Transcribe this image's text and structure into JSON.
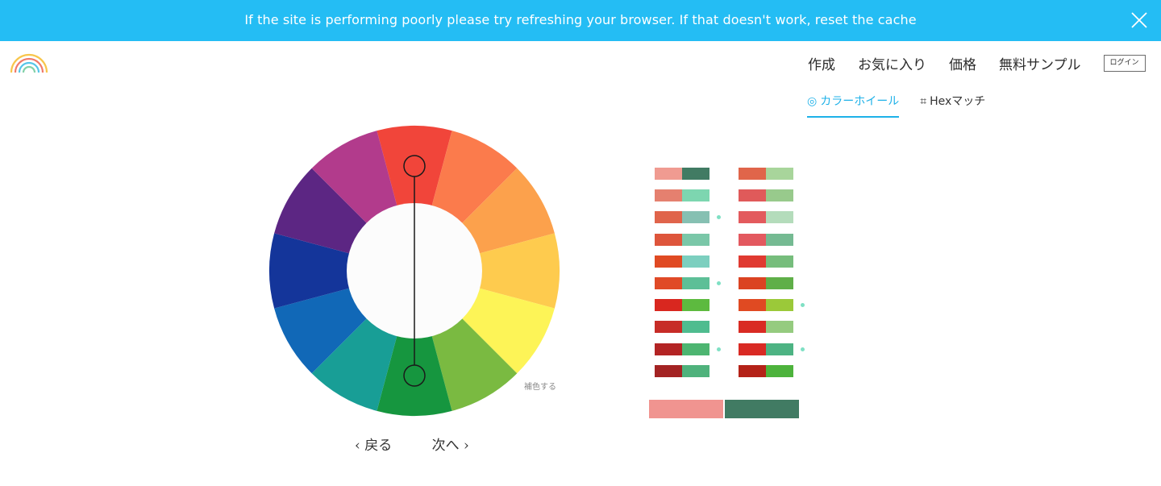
{
  "banner": {
    "message": "If the site is performing poorly please try refreshing your browser. If that doesn't work, reset the cache",
    "close_icon": "close-icon",
    "background": "#24bdf4"
  },
  "header": {
    "logo_icon": "rainbow-logo-icon",
    "nav": [
      "作成",
      "お気に入り",
      "価格",
      "無料サンプル"
    ],
    "login_label": "ログイン"
  },
  "tabs": [
    {
      "icon": "◎",
      "label": "カラーホイール",
      "active": true
    },
    {
      "icon": "⌗",
      "label": "Hexマッチ",
      "active": false
    }
  ],
  "wheel": {
    "segments": [
      "#f1453a",
      "#fb7b4c",
      "#fca14c",
      "#fecb4e",
      "#fdf457",
      "#7aba41",
      "#16963f",
      "#189e96",
      "#1168b7",
      "#14359a",
      "#5c2683",
      "#b23b8c"
    ],
    "center_color": "#fcfcfc",
    "handle_top_segment": 0,
    "handle_bottom_segment": 6,
    "mode_label": "補色する"
  },
  "pager": {
    "prev": "‹ 戻る",
    "next": "次へ ›"
  },
  "palette": {
    "left_column": [
      {
        "a": "#f09b91",
        "b": "#417b63",
        "marked": false
      },
      {
        "a": "#e5806f",
        "b": "#7dd6b0",
        "marked": false
      },
      {
        "a": "#e0644b",
        "b": "#86c0b2",
        "marked": true
      },
      {
        "a": "#de553b",
        "b": "#7ac7a8",
        "marked": false
      },
      {
        "a": "#e04a23",
        "b": "#7ccfbf",
        "marked": false
      },
      {
        "a": "#e04a27",
        "b": "#5dbf97",
        "marked": true
      },
      {
        "a": "#d9271f",
        "b": "#5dba3f",
        "marked": false
      },
      {
        "a": "#c72c27",
        "b": "#4fbc8f",
        "marked": false
      },
      {
        "a": "#b32424",
        "b": "#4db571",
        "marked": true
      },
      {
        "a": "#a32323",
        "b": "#4fb27c",
        "marked": false
      }
    ],
    "right_column": [
      {
        "a": "#e0654a",
        "b": "#a8d59b",
        "marked": false
      },
      {
        "a": "#e05a5a",
        "b": "#98ca8c",
        "marked": false
      },
      {
        "a": "#e35a5d",
        "b": "#b4dcbb",
        "marked": false
      },
      {
        "a": "#e3595f",
        "b": "#75ba92",
        "marked": false
      },
      {
        "a": "#e03a31",
        "b": "#76bd7c",
        "marked": false
      },
      {
        "a": "#db4322",
        "b": "#5faf48",
        "marked": false
      },
      {
        "a": "#e04a22",
        "b": "#9bc939",
        "marked": true
      },
      {
        "a": "#d92b23",
        "b": "#95cb7f",
        "marked": false
      },
      {
        "a": "#d92a24",
        "b": "#4db383",
        "marked": true
      },
      {
        "a": "#b42218",
        "b": "#4db33c",
        "marked": false
      }
    ],
    "selected": {
      "a": "#f09490",
      "b": "#417b63"
    }
  }
}
